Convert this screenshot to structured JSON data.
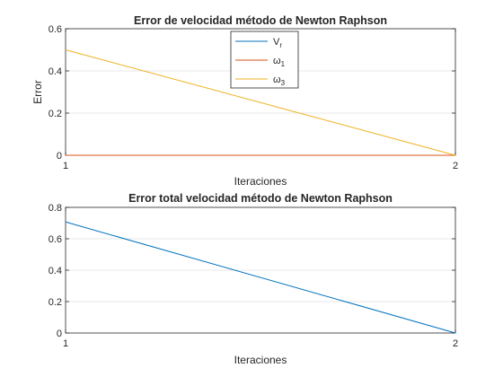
{
  "chart_data": [
    {
      "type": "line",
      "title": "Error de velocidad método de Newton Raphson",
      "xlabel": "Iteraciones",
      "ylabel": "Error",
      "x": [
        1,
        2
      ],
      "xlim": [
        1,
        2
      ],
      "ylim": [
        0,
        0.6
      ],
      "xticks": [
        "1",
        "2"
      ],
      "yticks": [
        "0",
        "0.2",
        "0.4",
        "0.6"
      ],
      "grid": "horizontal",
      "legend_position": "top-center",
      "series": [
        {
          "name": "V_r",
          "name_main": "V",
          "name_sub": "r",
          "color": "#0072BD",
          "values": [
            0,
            0
          ]
        },
        {
          "name": "ω_1",
          "name_main": "ω",
          "name_sub": "1",
          "color": "#D95319",
          "values": [
            0,
            0
          ]
        },
        {
          "name": "ω_3",
          "name_main": "ω",
          "name_sub": "3",
          "color": "#EDB120",
          "values": [
            0.5,
            0
          ]
        }
      ]
    },
    {
      "type": "line",
      "title": "Error total velocidad método de Newton Raphson",
      "xlabel": "Iteraciones",
      "ylabel": "",
      "x": [
        1,
        2
      ],
      "xlim": [
        1,
        2
      ],
      "ylim": [
        0,
        0.8
      ],
      "xticks": [
        "1",
        "2"
      ],
      "yticks": [
        "0",
        "0.2",
        "0.4",
        "0.6",
        "0.8"
      ],
      "grid": "horizontal",
      "series": [
        {
          "name": "",
          "color": "#0072BD",
          "values": [
            0.707,
            0
          ]
        }
      ]
    }
  ]
}
